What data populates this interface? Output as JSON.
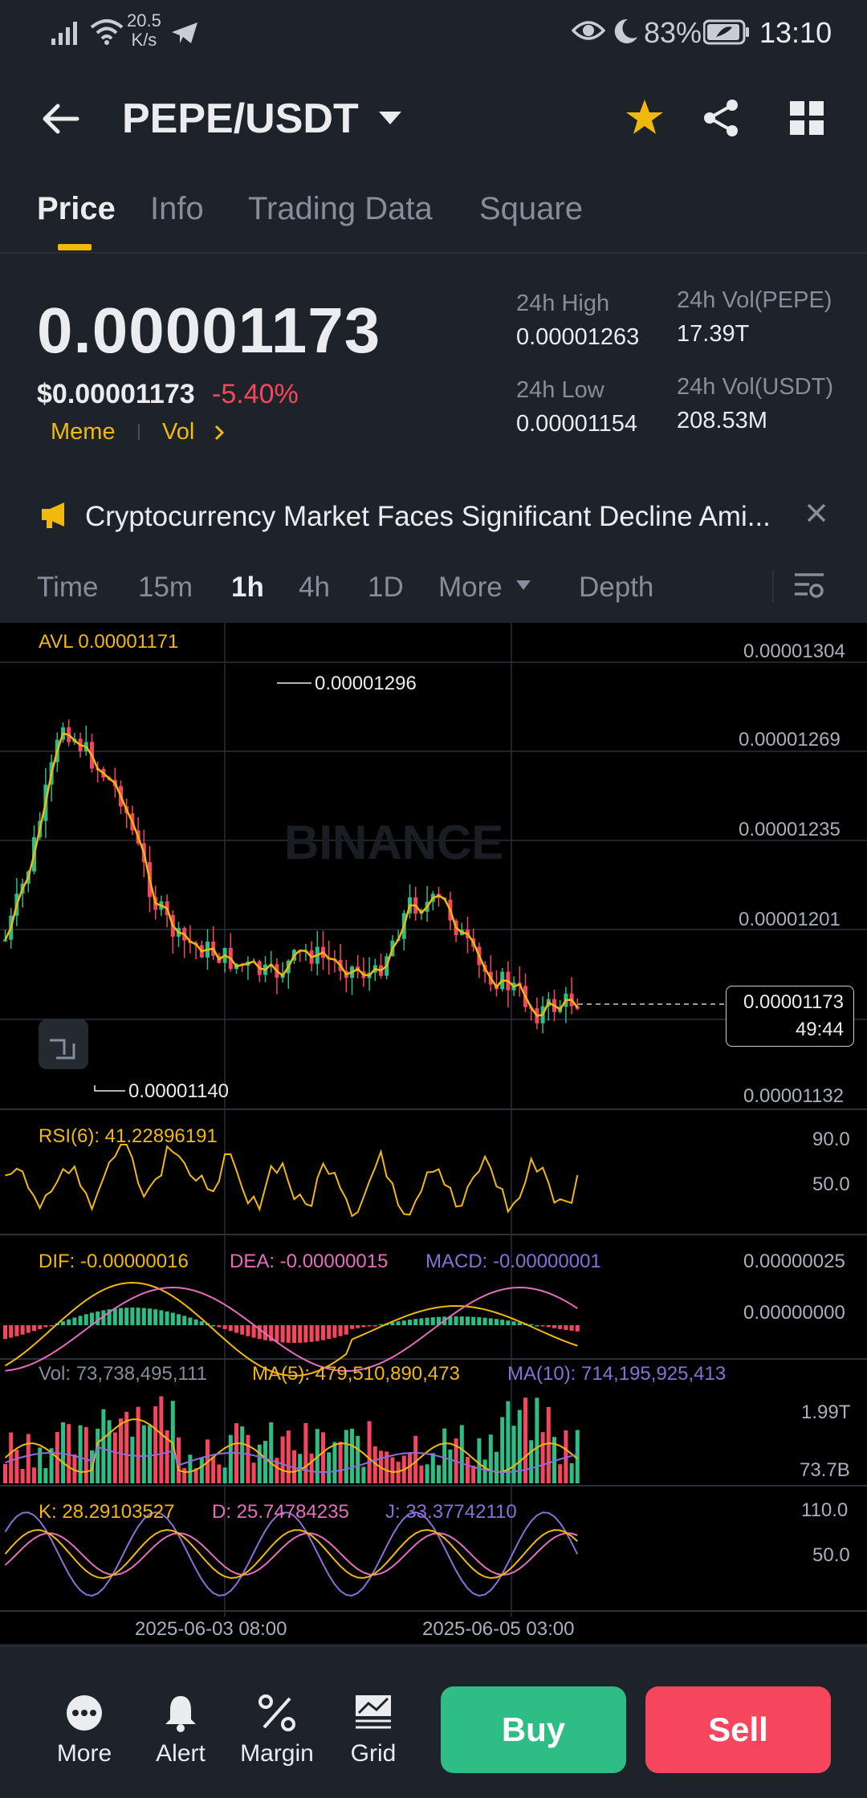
{
  "status_bar": {
    "net_speed": "20.5",
    "net_unit": "K/s",
    "battery": "83%",
    "time": "13:10"
  },
  "header": {
    "pair": "PEPE/USDT",
    "icons": [
      "back-arrow-icon",
      "chevron-down-icon",
      "star-icon",
      "share-icon",
      "grid-icon"
    ],
    "star_color": "#f0b90b"
  },
  "tabs": [
    {
      "label": "Price",
      "active": true
    },
    {
      "label": "Info",
      "active": false
    },
    {
      "label": "Trading Data",
      "active": false
    },
    {
      "label": "Square",
      "active": false
    }
  ],
  "price": {
    "last": "0.00001173",
    "usd": "$0.00001173",
    "change": "-5.40%",
    "tags": [
      "Meme",
      "Vol"
    ]
  },
  "stats": {
    "high_label": "24h High",
    "high_value": "0.00001263",
    "low_label": "24h Low",
    "low_value": "0.00001154",
    "vol_base_label": "24h Vol(PEPE)",
    "vol_base_value": "17.39T",
    "vol_quote_label": "24h Vol(USDT)",
    "vol_quote_value": "208.53M"
  },
  "news": {
    "text": "Cryptocurrency Market Faces Significant Decline Ami..."
  },
  "intervals": {
    "items": [
      "Time",
      "15m",
      "1h",
      "4h",
      "1D",
      "More",
      "Depth"
    ],
    "active": "1h"
  },
  "chart": {
    "avl": "AVL 0.00001171",
    "watermark": "BINANCE",
    "price_axis": [
      "0.00001304",
      "0.00001269",
      "0.00001235",
      "0.00001201",
      "0.00001132"
    ],
    "high_marker": "0.00001296",
    "low_marker": "0.00001140",
    "current_price": "0.00001173",
    "countdown": "49:44",
    "x_labels": [
      "2025-06-03 08:00",
      "2025-06-05 03:00"
    ],
    "colors": {
      "up": "#2ebd85",
      "down": "#f6465d",
      "ma": "#f0b90b",
      "line2": "#e36fbd",
      "line3": "#8c6fd6"
    }
  },
  "indicators": {
    "rsi": {
      "label": "RSI(6): 41.22896191",
      "axis_top": "90.0",
      "axis_mid": "50.0"
    },
    "macd": {
      "dif": "DIF: -0.00000016",
      "dea": "DEA: -0.00000015",
      "macd": "MACD: -0.00000001",
      "axis_top": "0.00000025",
      "axis_mid": "0.00000000"
    },
    "vol": {
      "vol": "Vol: 73,738,495,111",
      "ma5": "MA(5): 479,510,890,473",
      "ma10": "MA(10): 714,195,925,413",
      "axis_top": "1.99T",
      "axis_bottom": "73.7B"
    },
    "kdj": {
      "k": "K: 28.29103527",
      "d": "D: 25.74784235",
      "j": "J: 33.37742110",
      "axis_top": "110.0",
      "axis_mid": "50.0"
    }
  },
  "bottom_nav": {
    "more": "More",
    "alert": "Alert",
    "margin": "Margin",
    "grid": "Grid",
    "buy": "Buy",
    "sell": "Sell"
  }
}
